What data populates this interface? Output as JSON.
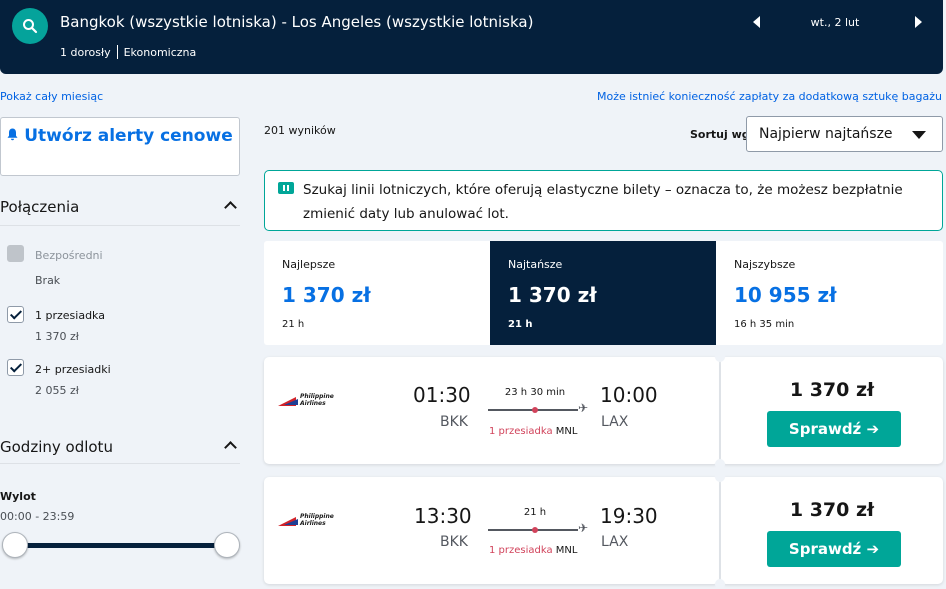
{
  "header": {
    "route": "Bangkok (wszystkie lotniska) - Los Angeles (wszystkie lotniska)",
    "passengers": "1 dorosły",
    "cabin": "Ekonomiczna",
    "date": "wt., 2 lut",
    "icons": [
      "search-icon",
      "chevron-left-icon",
      "chevron-right-icon"
    ]
  },
  "links": {
    "whole_month": "Pokaż cały miesiąc",
    "baggage": "Może istnieć konieczność zapłaty za dodatkową sztukę bagażu"
  },
  "sidebar": {
    "alert_button": "Utwórz alerty cenowe",
    "connections_title": "Połączenia",
    "options": [
      {
        "label": "Bezpośredni",
        "sub": "Brak",
        "checked": false,
        "disabled": true
      },
      {
        "label": "1 przesiadka",
        "sub": "1 370 zł",
        "checked": true,
        "disabled": false
      },
      {
        "label": "2+ przesiadki",
        "sub": "2 055 zł",
        "checked": true,
        "disabled": false
      }
    ],
    "departure_title": "Godziny odlotu",
    "departure_label": "Wylot",
    "departure_range": "00:00 - 23:59"
  },
  "results": {
    "count": "201 wyników",
    "sort_label": "Sortuj wg",
    "sort_value": "Najpierw najtańsze",
    "info_text": "Szukaj linii lotniczych, które oferują elastyczne bilety – oznacza to, że możesz bezpłatnie zmienić daty lub anulować lot.",
    "tabs": [
      {
        "label": "Najlepsze",
        "price": "1 370 zł",
        "duration": "21 h",
        "active": false
      },
      {
        "label": "Najtańsze",
        "price": "1 370 zł",
        "duration": "21 h",
        "active": true
      },
      {
        "label": "Najszybsze",
        "price": "10 955 zł",
        "duration": "16 h 35 min",
        "active": false
      }
    ],
    "flights": [
      {
        "airline": "Philippine Airlines",
        "depart_time": "01:30",
        "depart_airport": "BKK",
        "arrive_time": "10:00",
        "arrive_airport": "LAX",
        "duration": "23 h 30 min",
        "stops": "1 przesiadka",
        "hub": "MNL",
        "price": "1 370 zł",
        "button": "Sprawdź ➔"
      },
      {
        "airline": "Philippine Airlines",
        "depart_time": "13:30",
        "depart_airport": "BKK",
        "arrive_time": "19:30",
        "arrive_airport": "LAX",
        "duration": "21 h",
        "stops": "1 przesiadka",
        "hub": "MNL",
        "price": "1 370 zł",
        "button": "Sprawdź ➔"
      }
    ]
  },
  "colors": {
    "header_bg": "#05203c",
    "accent_teal": "#00a698",
    "link_blue": "#0770e3",
    "stop_red": "#d1435b"
  }
}
